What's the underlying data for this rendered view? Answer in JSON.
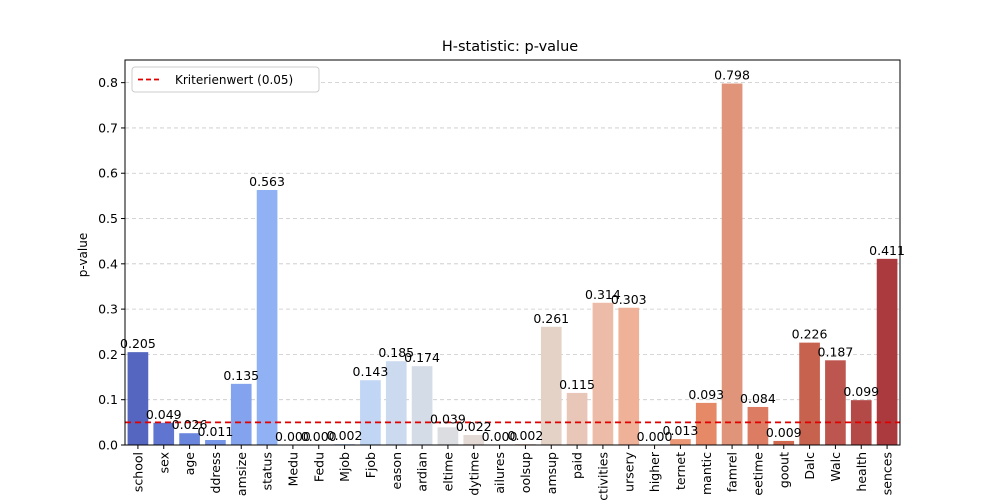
{
  "chart_data": {
    "type": "bar",
    "title": "H-statistic:  p-value",
    "xlabel": "",
    "ylabel": "p-value",
    "ylim": [
      0,
      0.85
    ],
    "yticks": [
      0.0,
      0.1,
      0.2,
      0.3,
      0.4,
      0.5,
      0.6,
      0.7,
      0.8
    ],
    "ytick_labels": [
      "0.0",
      "0.1",
      "0.2",
      "0.3",
      "0.4",
      "0.5",
      "0.6",
      "0.7",
      "0.8"
    ],
    "grid": "y-dashed",
    "legend_position": "upper-left",
    "categories": [
      "school",
      "sex",
      "age",
      "address",
      "famsize",
      "Pstatus",
      "Medu",
      "Fedu",
      "Mjob",
      "Fjob",
      "reason",
      "guardian",
      "traveltime",
      "studytime",
      "failures",
      "schoolsup",
      "famsup",
      "paid",
      "activities",
      "nursery",
      "higher",
      "internet",
      "romantic",
      "famrel",
      "freetime",
      "goout",
      "Dalc",
      "Walc",
      "health",
      "absences"
    ],
    "tick_labels": [
      "school",
      "sex",
      "age",
      "ddress",
      "amsize",
      "status",
      "Medu",
      "Fedu",
      "Mjob",
      "Fjob",
      "eason",
      "ardian",
      "eltime",
      "dytime",
      "ailures",
      "oolsup",
      "amsup",
      "paid",
      "ctivities",
      "ursery",
      "higher",
      "ternet",
      "mantic",
      "famrel",
      "eetime",
      "goout",
      "Dalc",
      "Walc",
      "health",
      "sences"
    ],
    "values": [
      0.205,
      0.049,
      0.026,
      0.011,
      0.135,
      0.563,
      0.0,
      0.0,
      0.002,
      0.143,
      0.185,
      0.174,
      0.039,
      0.022,
      0.0,
      0.002,
      0.261,
      0.115,
      0.314,
      0.303,
      0.0,
      0.013,
      0.093,
      0.798,
      0.084,
      0.009,
      0.226,
      0.187,
      0.099,
      0.411
    ],
    "data_labels": [
      "0.205",
      "0.049",
      "0.026",
      "0.011",
      "0.135",
      "0.563",
      "0.000",
      "0.000",
      "0.002",
      "0.143",
      "0.185",
      "0.174",
      "0.039",
      "0.022",
      "0.000",
      "0.002",
      "0.261",
      "0.115",
      "0.314",
      "0.303",
      "0.000",
      "0.013",
      "0.093",
      "0.798",
      "0.084",
      "0.009",
      "0.226",
      "0.187",
      "0.099",
      "0.411"
    ],
    "bar_colors": [
      "#5466bf",
      "#5f75cf",
      "#6a85dc",
      "#7795e6",
      "#83a3ee",
      "#90b1f4",
      "#9dbdf7",
      "#aac8f9",
      "#b6d0f8",
      "#c1d6f4",
      "#cbdaef",
      "#d4dce8",
      "#dcdde0",
      "#e3dad5",
      "#e7d3ca",
      "#ebcbbd",
      "#e4d2c7",
      "#e9c7b8",
      "#edbca8",
      "#efb197",
      "#eea486",
      "#eb9775",
      "#e68966",
      "#e09479",
      "#db7c63",
      "#d0684f",
      "#c6624e",
      "#be5650",
      "#b44a48",
      "#ab3a3f"
    ],
    "threshold": {
      "value": 0.05,
      "label": "Kriterienwert (0.05)",
      "color": "#e00000"
    }
  }
}
